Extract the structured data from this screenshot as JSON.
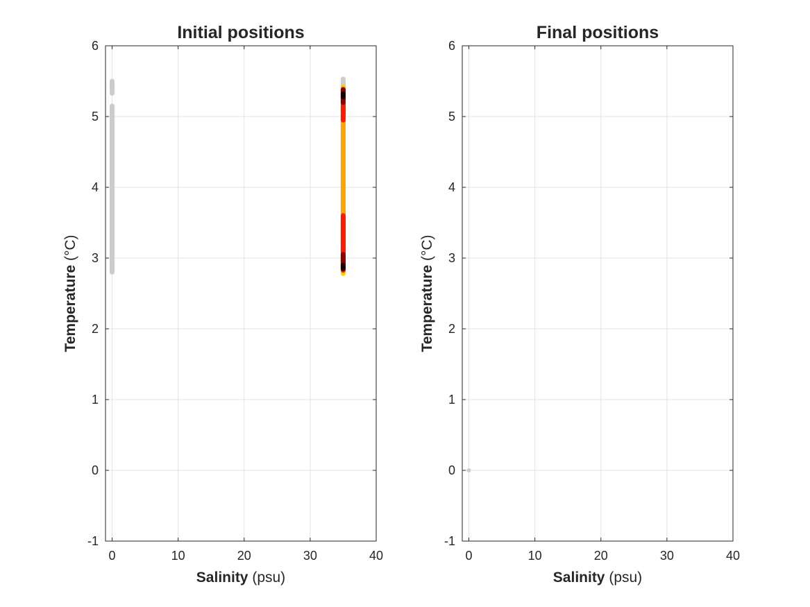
{
  "chart_data": [
    {
      "type": "scatter",
      "title": "Initial positions",
      "xlabel": {
        "bold": "Salinity",
        "unit": " (psu)"
      },
      "ylabel": {
        "bold": "Temperature",
        "unit": " (°C)"
      },
      "xlim": [
        -1,
        40
      ],
      "ylim": [
        -1,
        6
      ],
      "xticks": [
        0,
        10,
        20,
        30,
        40
      ],
      "yticks": [
        -1,
        0,
        1,
        2,
        3,
        4,
        5,
        6
      ],
      "grid": true,
      "series": [
        {
          "color": "#cccccc",
          "segments": [
            {
              "x": 0,
              "y0": 5.33,
              "y1": 5.5
            },
            {
              "x": 0,
              "y0": 2.8,
              "y1": 5.15
            },
            {
              "x": 35,
              "y0": 5.42,
              "y1": 5.53
            }
          ]
        },
        {
          "color": "#ffd700",
          "segments": [
            {
              "x": 35,
              "y0": 2.78,
              "y1": 5.42
            }
          ]
        },
        {
          "color": "#ffa500",
          "segments": [
            {
              "x": 35,
              "y0": 2.82,
              "y1": 5.4
            }
          ]
        },
        {
          "color": "#ff1a00",
          "segments": [
            {
              "x": 35,
              "y0": 4.95,
              "y1": 5.38
            },
            {
              "x": 35,
              "y0": 2.83,
              "y1": 3.6
            }
          ]
        },
        {
          "color": "#8b0000",
          "segments": [
            {
              "x": 35,
              "y0": 5.2,
              "y1": 5.38
            },
            {
              "x": 35,
              "y0": 2.85,
              "y1": 3.05
            }
          ]
        },
        {
          "color": "#1a0000",
          "segments": [
            {
              "x": 35,
              "y0": 5.28,
              "y1": 5.32
            },
            {
              "x": 35,
              "y0": 2.85,
              "y1": 2.9
            }
          ]
        }
      ]
    },
    {
      "type": "scatter",
      "title": "Final positions",
      "xlabel": {
        "bold": "Salinity",
        "unit": " (psu)"
      },
      "ylabel": {
        "bold": "Temperature",
        "unit": " (°C)"
      },
      "xlim": [
        -1,
        40
      ],
      "ylim": [
        -1,
        6
      ],
      "xticks": [
        0,
        10,
        20,
        30,
        40
      ],
      "yticks": [
        -1,
        0,
        1,
        2,
        3,
        4,
        5,
        6
      ],
      "grid": true,
      "series": [
        {
          "color": "#cccccc",
          "points": [
            {
              "x": 0,
              "y": 0
            }
          ]
        }
      ]
    }
  ]
}
